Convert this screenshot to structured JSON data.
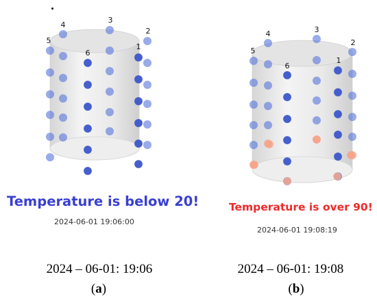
{
  "panels": [
    {
      "id": "a",
      "status_text": "Temperature is below 20!",
      "status_color": "#3a3fd1",
      "timestamp": "2024-06-01 19:06:00",
      "caption": "2024 – 06-01: 19:06",
      "label": "a",
      "column_labels": [
        "1",
        "2",
        "3",
        "4",
        "5",
        "6"
      ],
      "state": "cold"
    },
    {
      "id": "b",
      "status_text": "Temperature is over 90!",
      "status_color": "#ee2a2a",
      "timestamp": "2024-06-01 19:08:19",
      "caption": "2024 – 06-01: 19:08",
      "label": "b",
      "column_labels": [
        "1",
        "2",
        "3",
        "4",
        "5",
        "6"
      ],
      "state": "hot"
    }
  ],
  "colors": {
    "sensor_blue": "#5a78dc",
    "sensor_blue_dark": "#3b56c9",
    "sensor_orange": "#f5a48a"
  }
}
